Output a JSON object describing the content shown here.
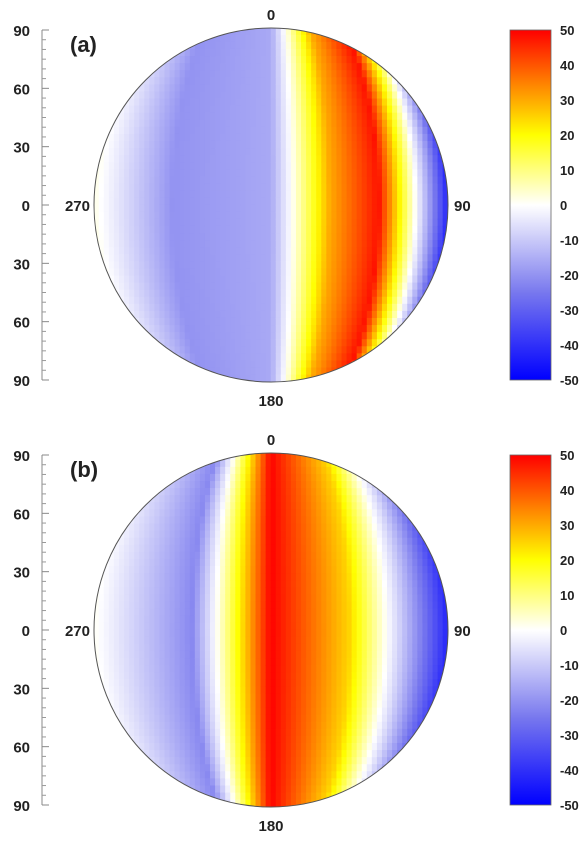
{
  "chart_data": [
    {
      "type": "heatmap",
      "panel_label": "(a)",
      "left_axis_ticks": [
        "90",
        "60",
        "30",
        "0",
        "30",
        "60",
        "90"
      ],
      "azimuth_labels": {
        "top": "0",
        "right": "90",
        "bottom": "180",
        "left": "270"
      },
      "colorbar": {
        "ticks": [
          "50",
          "40",
          "30",
          "20",
          "10",
          "0",
          "-10",
          "-20",
          "-30",
          "-40",
          "-50"
        ],
        "range": [
          -50,
          50
        ],
        "colors": [
          "#0000ff",
          "#7878ee",
          "#ffffff",
          "#ffff00",
          "#ff0000"
        ]
      },
      "field_profile_by_azimuth": [
        {
          "az": 0,
          "value": -16
        },
        {
          "az": 30,
          "value": 30
        },
        {
          "az": 55,
          "value": 48
        },
        {
          "az": 90,
          "value": -42
        },
        {
          "az": 125,
          "value": 48
        },
        {
          "az": 150,
          "value": 30
        },
        {
          "az": 180,
          "value": -16
        },
        {
          "az": 230,
          "value": -20
        },
        {
          "az": 270,
          "value": 2
        },
        {
          "az": 310,
          "value": -20
        },
        {
          "az": 360,
          "value": -16
        }
      ]
    },
    {
      "type": "heatmap",
      "panel_label": "(b)",
      "left_axis_ticks": [
        "90",
        "60",
        "30",
        "0",
        "30",
        "60",
        "90"
      ],
      "azimuth_labels": {
        "top": "0",
        "right": "90",
        "bottom": "180",
        "left": "270"
      },
      "colorbar": {
        "ticks": [
          "50",
          "40",
          "30",
          "20",
          "10",
          "0",
          "-10",
          "-20",
          "-30",
          "-40",
          "-50"
        ],
        "range": [
          -50,
          50
        ],
        "colors": [
          "#0000ff",
          "#7878ee",
          "#ffffff",
          "#ffff00",
          "#ff0000"
        ]
      },
      "field_profile_by_azimuth": [
        {
          "az": 0,
          "value": 50
        },
        {
          "az": 40,
          "value": 25
        },
        {
          "az": 65,
          "value": -8
        },
        {
          "az": 90,
          "value": -42
        },
        {
          "az": 115,
          "value": -8
        },
        {
          "az": 140,
          "value": 25
        },
        {
          "az": 180,
          "value": 50
        },
        {
          "az": 220,
          "value": -22
        },
        {
          "az": 270,
          "value": 1
        },
        {
          "az": 320,
          "value": -22
        },
        {
          "az": 360,
          "value": 50
        }
      ]
    }
  ]
}
